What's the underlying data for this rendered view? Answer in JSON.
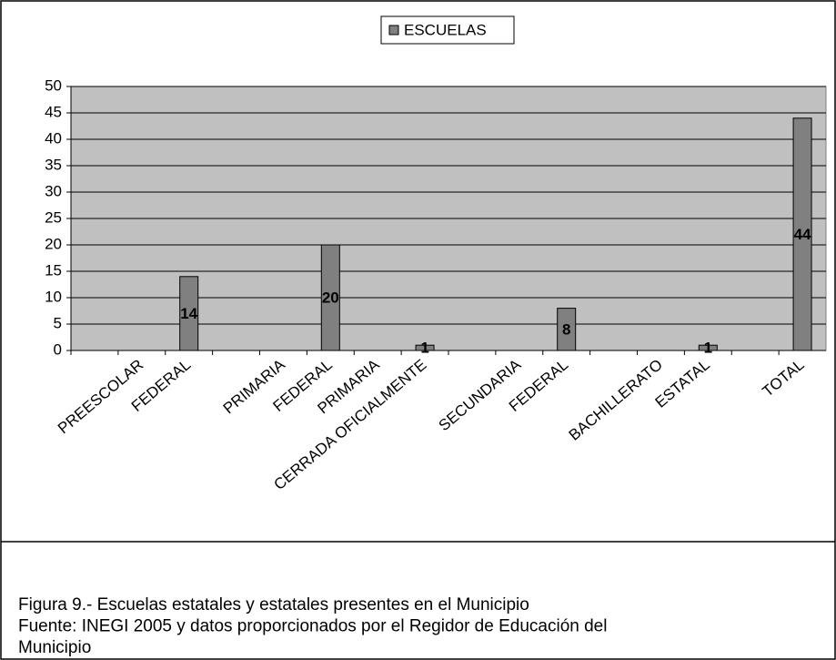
{
  "chart_data": {
    "type": "bar",
    "categories": [
      null,
      "PREESCOLAR",
      "FEDERAL",
      null,
      "PRIMARIA",
      "FEDERAL",
      "PRIMARIA",
      "CERRADA OFICIALMENTE",
      null,
      "SECUNDARIA",
      "FEDERAL",
      null,
      "BACHILLERATO",
      "ESTATAL",
      null,
      "TOTAL"
    ],
    "series": [
      {
        "name": "ESCUELAS",
        "color": "#808080",
        "values": [
          null,
          null,
          14,
          null,
          null,
          20,
          null,
          1,
          null,
          null,
          8,
          null,
          null,
          1,
          null,
          44
        ]
      }
    ],
    "ylim": [
      0,
      50
    ],
    "yticks": [
      0,
      5,
      10,
      15,
      20,
      25,
      30,
      35,
      40,
      45,
      50
    ],
    "grid": true,
    "plot_background": "#c0c0c0",
    "legend": "top"
  },
  "caption": [
    "Figura 9.- Escuelas estatales y estatales presentes en el Municipio",
    "Fuente: INEGI 2005  y datos proporcionados por el Regidor de Educación del",
    "Municipio"
  ]
}
